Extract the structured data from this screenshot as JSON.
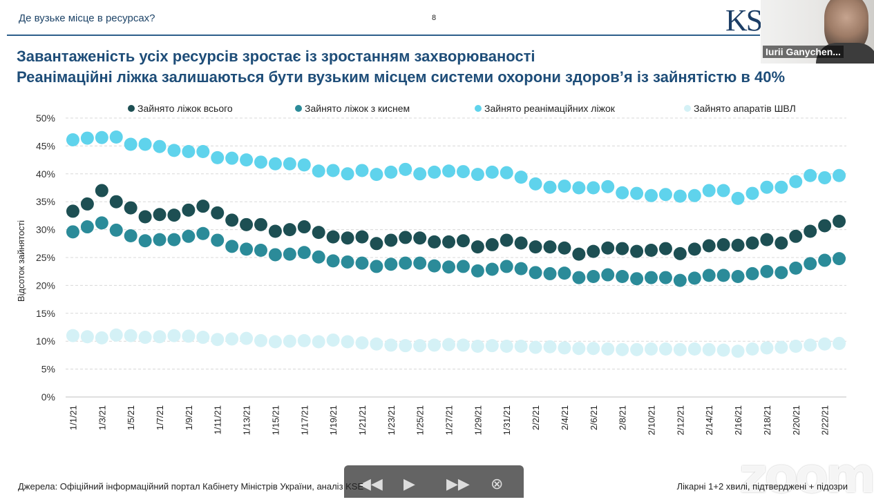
{
  "header": {
    "section_title": "Де вузьке місце в ресурсах?",
    "page_number": "8",
    "logo": "KSE"
  },
  "video": {
    "participant_name": "Iurii Ganychen..."
  },
  "headline": {
    "line1": "Завантаженість усіх ресурсів зростає із зростанням захворюваності",
    "line2": "Реанімаційні ліжка залишаються бути вузьким місцем системи охорони здоров’я із зайнятістю в 40%"
  },
  "footer": {
    "source": "Джерела: Офіційний інформаційний портал Кабінету Міністрів України, аналіз KSE",
    "note": "Лікарні 1+2 хвилі, підтверджені + підозри"
  },
  "colors": {
    "total": "#1d4f53",
    "oxygen": "#2b8b99",
    "icu": "#5fd3ec",
    "vent": "#d4f1f6",
    "title": "#1e4d78"
  },
  "chart_data": {
    "type": "scatter",
    "ylabel": "Відсоток зайнятості",
    "ylim": [
      0,
      50
    ],
    "yticks": [
      "0%",
      "5%",
      "10%",
      "15%",
      "20%",
      "25%",
      "30%",
      "35%",
      "40%",
      "45%",
      "50%"
    ],
    "grid": true,
    "legend_position": "top",
    "x": [
      "1/1/21",
      "1/2/21",
      "1/3/21",
      "1/4/21",
      "1/5/21",
      "1/6/21",
      "1/7/21",
      "1/8/21",
      "1/9/21",
      "1/10/21",
      "1/11/21",
      "1/12/21",
      "1/13/21",
      "1/14/21",
      "1/15/21",
      "1/16/21",
      "1/17/21",
      "1/18/21",
      "1/19/21",
      "1/20/21",
      "1/21/21",
      "1/22/21",
      "1/23/21",
      "1/24/21",
      "1/25/21",
      "1/26/21",
      "1/27/21",
      "1/28/21",
      "1/29/21",
      "1/30/21",
      "1/31/21",
      "2/1/21",
      "2/2/21",
      "2/3/21",
      "2/4/21",
      "2/5/21",
      "2/6/21",
      "2/7/21",
      "2/8/21",
      "2/9/21",
      "2/10/21",
      "2/11/21",
      "2/12/21",
      "2/13/21",
      "2/14/21",
      "2/15/21",
      "2/16/21",
      "2/17/21",
      "2/18/21",
      "2/19/21",
      "2/20/21",
      "2/21/21",
      "2/22/21",
      "2/23/21"
    ],
    "x_tick_labels": [
      "1/1/21",
      "1/3/21",
      "1/5/21",
      "1/7/21",
      "1/9/21",
      "1/11/21",
      "1/13/21",
      "1/15/21",
      "1/17/21",
      "1/19/21",
      "1/21/21",
      "1/23/21",
      "1/25/21",
      "1/27/21",
      "1/29/21",
      "1/31/21",
      "2/2/21",
      "2/4/21",
      "2/6/21",
      "2/8/21",
      "2/10/21",
      "2/12/21",
      "2/14/21",
      "2/16/21",
      "2/18/21",
      "2/20/21",
      "2/22/21"
    ],
    "series": [
      {
        "name": "Зайнято ліжок всього",
        "color": "#1d4f53",
        "values": [
          33.3,
          34.6,
          37.0,
          35.0,
          33.9,
          32.3,
          32.7,
          32.6,
          33.5,
          34.2,
          33.0,
          31.7,
          30.9,
          30.9,
          29.7,
          30.0,
          30.5,
          29.5,
          28.7,
          28.5,
          28.7,
          27.5,
          28.1,
          28.6,
          28.5,
          27.8,
          27.8,
          28.0,
          26.9,
          27.3,
          28.1,
          27.6,
          26.9,
          26.9,
          26.7,
          25.6,
          26.1,
          26.7,
          26.6,
          26.1,
          26.3,
          26.6,
          25.7,
          26.5,
          27.1,
          27.3,
          27.2,
          27.6,
          28.2,
          27.6,
          28.8,
          29.7,
          30.7,
          31.5
        ]
      },
      {
        "name": "Зайнято ліжок з киснем",
        "color": "#2b8b99",
        "values": [
          29.6,
          30.5,
          31.2,
          29.9,
          28.9,
          28.0,
          28.2,
          28.2,
          28.8,
          29.3,
          28.1,
          27.0,
          26.5,
          26.3,
          25.5,
          25.6,
          25.9,
          25.1,
          24.4,
          24.2,
          24.0,
          23.4,
          23.8,
          24.0,
          24.0,
          23.5,
          23.3,
          23.4,
          22.6,
          22.9,
          23.4,
          23.0,
          22.3,
          22.1,
          22.2,
          21.4,
          21.6,
          21.9,
          21.6,
          21.2,
          21.4,
          21.4,
          20.9,
          21.3,
          21.8,
          21.8,
          21.6,
          22.1,
          22.5,
          22.3,
          23.1,
          23.9,
          24.5,
          24.8
        ]
      },
      {
        "name": "Зайнято реанімаційних ліжок",
        "color": "#5fd3ec",
        "values": [
          46.1,
          46.4,
          46.5,
          46.6,
          45.3,
          45.3,
          44.9,
          44.2,
          44.0,
          44.0,
          42.9,
          42.8,
          42.5,
          42.1,
          41.8,
          41.8,
          41.6,
          40.5,
          40.6,
          40.0,
          40.6,
          39.9,
          40.3,
          40.8,
          40.0,
          40.3,
          40.5,
          40.4,
          39.9,
          40.3,
          40.2,
          39.4,
          38.2,
          37.6,
          37.8,
          37.5,
          37.5,
          37.7,
          36.6,
          36.5,
          36.1,
          36.3,
          36.0,
          36.1,
          37.0,
          37.0,
          35.6,
          36.5,
          37.6,
          37.6,
          38.6,
          39.7,
          39.3,
          39.7
        ]
      },
      {
        "name": "Зайнято апаратів ШВЛ",
        "color": "#d4f1f6",
        "values": [
          11.0,
          10.8,
          10.6,
          11.1,
          11.0,
          10.7,
          10.8,
          11.0,
          10.9,
          10.7,
          10.3,
          10.4,
          10.5,
          10.1,
          9.9,
          10.0,
          10.1,
          9.9,
          10.2,
          9.9,
          9.7,
          9.5,
          9.3,
          9.2,
          9.2,
          9.3,
          9.4,
          9.3,
          9.1,
          9.2,
          9.1,
          9.1,
          8.9,
          9.0,
          8.8,
          8.7,
          8.7,
          8.6,
          8.5,
          8.5,
          8.6,
          8.6,
          8.5,
          8.6,
          8.5,
          8.4,
          8.2,
          8.6,
          8.8,
          8.9,
          9.1,
          9.3,
          9.5,
          9.6
        ]
      }
    ]
  }
}
